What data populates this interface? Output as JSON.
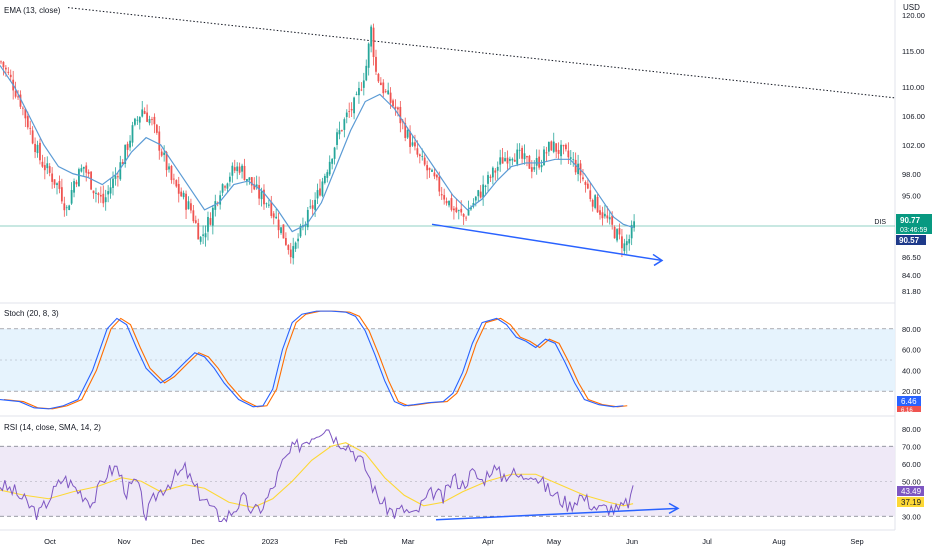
{
  "chart_data": {
    "type": "candlestick",
    "symbol": "DIS",
    "currency": "USD",
    "x_axis_labels": [
      "Oct",
      "Nov",
      "Dec",
      "2023",
      "Feb",
      "Mar",
      "Apr",
      "May",
      "Jun",
      "Jul",
      "Aug",
      "Sep"
    ],
    "price_panel": {
      "indicator_label": "EMA (13, close)",
      "y_ticks": [
        "120.00",
        "115.00",
        "110.00",
        "106.00",
        "102.00",
        "98.00",
        "95.00",
        "92.00",
        "86.50",
        "84.00",
        "81.80"
      ],
      "last_price": "90.77",
      "countdown": "03:46:59",
      "ema_value": "90.57",
      "price_line": 90.77,
      "candles_close_path": [
        [
          0,
          113.5
        ],
        [
          4,
          111
        ],
        [
          8,
          108
        ],
        [
          12,
          104
        ],
        [
          16,
          100
        ],
        [
          20,
          98
        ],
        [
          24,
          96
        ],
        [
          27,
          93
        ],
        [
          30,
          97
        ],
        [
          34,
          99
        ],
        [
          38,
          96
        ],
        [
          42,
          94
        ],
        [
          46,
          97
        ],
        [
          50,
          100
        ],
        [
          54,
          104
        ],
        [
          58,
          107
        ],
        [
          62,
          105
        ],
        [
          66,
          101
        ],
        [
          70,
          97
        ],
        [
          74,
          95
        ],
        [
          78,
          93
        ],
        [
          82,
          89
        ],
        [
          86,
          92
        ],
        [
          90,
          96
        ],
        [
          94,
          98
        ],
        [
          98,
          99
        ],
        [
          102,
          97
        ],
        [
          106,
          95
        ],
        [
          110,
          94
        ],
        [
          114,
          91
        ],
        [
          118,
          88
        ],
        [
          120,
          87
        ],
        [
          122,
          89
        ],
        [
          126,
          92
        ],
        [
          130,
          95
        ],
        [
          134,
          99
        ],
        [
          138,
          103
        ],
        [
          142,
          106
        ],
        [
          146,
          108
        ],
        [
          150,
          113
        ],
        [
          152,
          118
        ],
        [
          154,
          112
        ],
        [
          158,
          109
        ],
        [
          162,
          107
        ],
        [
          166,
          104
        ],
        [
          170,
          101
        ],
        [
          174,
          99
        ],
        [
          178,
          97
        ],
        [
          182,
          95
        ],
        [
          186,
          93
        ],
        [
          190,
          92
        ],
        [
          194,
          94
        ],
        [
          198,
          96
        ],
        [
          202,
          98
        ],
        [
          206,
          100
        ],
        [
          210,
          101
        ],
        [
          214,
          100
        ],
        [
          218,
          99
        ],
        [
          222,
          100
        ],
        [
          226,
          102
        ],
        [
          230,
          101
        ],
        [
          234,
          100
        ],
        [
          238,
          98
        ],
        [
          242,
          95
        ],
        [
          246,
          93
        ],
        [
          250,
          91
        ],
        [
          254,
          89
        ],
        [
          256,
          88
        ],
        [
          258,
          89
        ],
        [
          260,
          90.77
        ]
      ],
      "ema_path": [
        [
          0,
          113
        ],
        [
          6,
          110
        ],
        [
          12,
          106
        ],
        [
          18,
          102
        ],
        [
          24,
          99
        ],
        [
          30,
          98
        ],
        [
          36,
          97.5
        ],
        [
          42,
          96.5
        ],
        [
          48,
          98
        ],
        [
          54,
          101
        ],
        [
          60,
          103
        ],
        [
          66,
          102
        ],
        [
          72,
          99
        ],
        [
          78,
          96
        ],
        [
          84,
          93
        ],
        [
          90,
          94
        ],
        [
          96,
          96.5
        ],
        [
          102,
          97
        ],
        [
          108,
          95.5
        ],
        [
          114,
          93
        ],
        [
          120,
          90
        ],
        [
          126,
          91
        ],
        [
          132,
          94
        ],
        [
          138,
          99
        ],
        [
          144,
          104
        ],
        [
          150,
          108
        ],
        [
          156,
          109
        ],
        [
          162,
          107
        ],
        [
          168,
          104
        ],
        [
          174,
          101
        ],
        [
          180,
          98
        ],
        [
          186,
          95
        ],
        [
          192,
          93
        ],
        [
          198,
          94.5
        ],
        [
          204,
          97
        ],
        [
          210,
          99
        ],
        [
          216,
          99.5
        ],
        [
          222,
          99.5
        ],
        [
          228,
          100
        ],
        [
          234,
          100
        ],
        [
          240,
          98
        ],
        [
          246,
          95
        ],
        [
          252,
          92
        ],
        [
          256,
          91
        ],
        [
          260,
          90.57
        ]
      ],
      "trendline_upper": {
        "from": "Sep 2022",
        "to": "Sep 2023",
        "value_start": 121,
        "value_end": 108.5
      },
      "trendline_support_arrow": {
        "from": "Mar 2023",
        "to": "Jun 2023",
        "value_start": 91,
        "value_end": 86
      }
    },
    "stochastic_panel": {
      "indicator_label": "Stoch (20, 8, 3)",
      "y_ticks": [
        "80.00",
        "60.00",
        "40.00",
        "20.00"
      ],
      "upper_band": 80,
      "lower_band": 20,
      "k_value": "6.46",
      "d_value": "6.16"
    },
    "rsi_panel": {
      "indicator_label": "RSI (14, close, SMA, 14, 2)",
      "y_ticks": [
        "80.00",
        "70.00",
        "60.00",
        "50.00",
        "40.00",
        "30.00"
      ],
      "upper_band": 70,
      "lower_band": 30,
      "rsi_value": "43.49",
      "sma_value": "37.19"
    },
    "colors": {
      "up": "#26a69a",
      "down": "#ef5350",
      "ema": "#5b9bd5",
      "stoch_k": "#2962ff",
      "stoch_d": "#ff6d00",
      "rsi": "#7e57c2",
      "rsi_sma": "#fdd835",
      "trend_arrow": "#2962ff",
      "price_tag": "#089981",
      "ema_tag": "#1e3a8a"
    }
  }
}
